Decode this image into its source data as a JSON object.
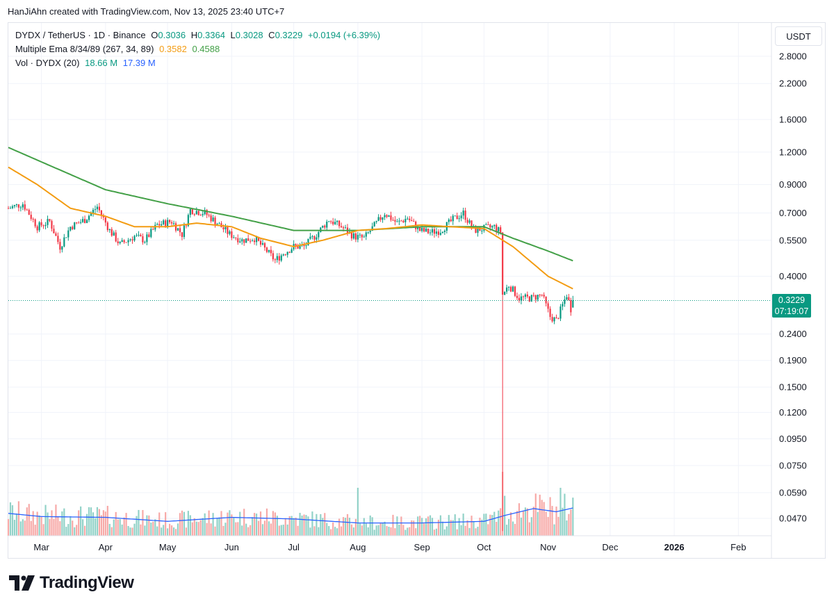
{
  "header": {
    "credit": "HanJiAhn created with TradingView.com, Nov 13, 2025 23:40 UTC+7"
  },
  "legend": {
    "symbol": "DYDX / TetherUS · 1D · Binance",
    "o_label": "O",
    "o_value": "0.3036",
    "h_label": "H",
    "h_value": "0.3364",
    "l_label": "L",
    "l_value": "0.3028",
    "c_label": "C",
    "c_value": "0.3229",
    "change": "+0.0194 (+6.39%)",
    "ema_label": "Multiple Ema 8/34/89 (267, 34, 89)",
    "ema34_value": "0.3582",
    "ema89_value": "0.4588",
    "vol_label": "Vol · DYDX (20)",
    "vol_value": "18.66 M",
    "vol_ma_value": "17.39 M"
  },
  "toolbar": {
    "currency": "USDT"
  },
  "last_price": {
    "price": "0.3229",
    "countdown": "07:19:07"
  },
  "brand": {
    "name": "TradingView",
    "logo_icon": "tradingview-logo-icon"
  },
  "colors": {
    "up": "#089981",
    "down": "#f23645",
    "vol_up": "#92d2c8",
    "vol_down": "#f7a9a7",
    "ema34": "#f39c12",
    "ema89": "#43a047",
    "vol_ma": "#2962ff"
  },
  "chart_data": {
    "type": "candlestick",
    "scale": "log",
    "grid": true,
    "y_ticks": [
      2.8,
      2.2,
      1.6,
      1.2,
      0.9,
      0.7,
      0.55,
      0.4,
      0.24,
      0.19,
      0.15,
      0.12,
      0.095,
      0.075,
      0.059,
      0.047
    ],
    "y_tick_labels": [
      "2.8000",
      "2.2000",
      "1.6000",
      "1.2000",
      "0.9000",
      "0.7000",
      "0.5500",
      "0.4000",
      "0.2400",
      "0.1900",
      "0.1500",
      "0.1200",
      "0.0950",
      "0.0750",
      "0.0590",
      "0.0470"
    ],
    "x_labels": [
      {
        "label": "Mar",
        "date": "2025-03-01"
      },
      {
        "label": "Apr",
        "date": "2025-04-01"
      },
      {
        "label": "May",
        "date": "2025-05-01"
      },
      {
        "label": "Jun",
        "date": "2025-06-01"
      },
      {
        "label": "Jul",
        "date": "2025-07-01"
      },
      {
        "label": "Aug",
        "date": "2025-08-01"
      },
      {
        "label": "Sep",
        "date": "2025-09-01"
      },
      {
        "label": "Oct",
        "date": "2025-10-01"
      },
      {
        "label": "Nov",
        "date": "2025-11-01"
      },
      {
        "label": "Dec",
        "date": "2025-12-01"
      },
      {
        "label": "2026",
        "date": "2026-01-01",
        "bold": true
      },
      {
        "label": "Feb",
        "date": "2026-02-01"
      }
    ],
    "x_range": [
      "2025-02-13",
      "2026-02-17"
    ],
    "price_anchors": [
      [
        "2025-02-13",
        0.73
      ],
      [
        "2025-02-20",
        0.76
      ],
      [
        "2025-02-27",
        0.62
      ],
      [
        "2025-03-05",
        0.65
      ],
      [
        "2025-03-10",
        0.52
      ],
      [
        "2025-03-15",
        0.62
      ],
      [
        "2025-03-22",
        0.66
      ],
      [
        "2025-03-28",
        0.74
      ],
      [
        "2025-04-03",
        0.6
      ],
      [
        "2025-04-08",
        0.53
      ],
      [
        "2025-04-15",
        0.57
      ],
      [
        "2025-04-20",
        0.55
      ],
      [
        "2025-04-26",
        0.63
      ],
      [
        "2025-05-03",
        0.65
      ],
      [
        "2025-05-08",
        0.58
      ],
      [
        "2025-05-12",
        0.72
      ],
      [
        "2025-05-19",
        0.7
      ],
      [
        "2025-05-25",
        0.64
      ],
      [
        "2025-05-31",
        0.58
      ],
      [
        "2025-06-06",
        0.55
      ],
      [
        "2025-06-12",
        0.56
      ],
      [
        "2025-06-18",
        0.5
      ],
      [
        "2025-06-22",
        0.46
      ],
      [
        "2025-06-26",
        0.49
      ],
      [
        "2025-07-01",
        0.52
      ],
      [
        "2025-07-06",
        0.52
      ],
      [
        "2025-07-12",
        0.58
      ],
      [
        "2025-07-18",
        0.66
      ],
      [
        "2025-07-24",
        0.62
      ],
      [
        "2025-07-30",
        0.57
      ],
      [
        "2025-08-04",
        0.56
      ],
      [
        "2025-08-10",
        0.64
      ],
      [
        "2025-08-14",
        0.7
      ],
      [
        "2025-08-20",
        0.64
      ],
      [
        "2025-08-25",
        0.67
      ],
      [
        "2025-08-31",
        0.6
      ],
      [
        "2025-09-05",
        0.59
      ],
      [
        "2025-09-10",
        0.6
      ],
      [
        "2025-09-16",
        0.66
      ],
      [
        "2025-09-21",
        0.7
      ],
      [
        "2025-09-26",
        0.6
      ],
      [
        "2025-10-01",
        0.61
      ],
      [
        "2025-10-06",
        0.62
      ],
      [
        "2025-10-09",
        0.59
      ],
      [
        "2025-10-10",
        0.34
      ],
      [
        "2025-10-13",
        0.37
      ],
      [
        "2025-10-18",
        0.33
      ],
      [
        "2025-10-24",
        0.33
      ],
      [
        "2025-10-29",
        0.34
      ],
      [
        "2025-11-02",
        0.28
      ],
      [
        "2025-11-05",
        0.27
      ],
      [
        "2025-11-08",
        0.31
      ],
      [
        "2025-11-10",
        0.34
      ],
      [
        "2025-11-12",
        0.3
      ],
      [
        "2025-11-13",
        0.3229
      ]
    ],
    "flash_wick": {
      "date": "2025-10-10",
      "high": 0.59,
      "low": 0.042
    },
    "ema34": [
      [
        "2025-02-13",
        1.05
      ],
      [
        "2025-02-27",
        0.9
      ],
      [
        "2025-03-15",
        0.73
      ],
      [
        "2025-04-01",
        0.68
      ],
      [
        "2025-04-15",
        0.62
      ],
      [
        "2025-05-01",
        0.62
      ],
      [
        "2025-05-15",
        0.64
      ],
      [
        "2025-06-01",
        0.62
      ],
      [
        "2025-06-15",
        0.56
      ],
      [
        "2025-07-01",
        0.52
      ],
      [
        "2025-07-15",
        0.55
      ],
      [
        "2025-08-01",
        0.6
      ],
      [
        "2025-08-15",
        0.61
      ],
      [
        "2025-09-01",
        0.63
      ],
      [
        "2025-09-15",
        0.62
      ],
      [
        "2025-10-01",
        0.61
      ],
      [
        "2025-10-15",
        0.52
      ],
      [
        "2025-11-01",
        0.4
      ],
      [
        "2025-11-13",
        0.3582
      ]
    ],
    "ema89": [
      [
        "2025-02-13",
        1.25
      ],
      [
        "2025-03-01",
        1.1
      ],
      [
        "2025-04-01",
        0.86
      ],
      [
        "2025-05-01",
        0.76
      ],
      [
        "2025-06-01",
        0.68
      ],
      [
        "2025-07-01",
        0.6
      ],
      [
        "2025-08-01",
        0.6
      ],
      [
        "2025-09-01",
        0.62
      ],
      [
        "2025-10-01",
        0.62
      ],
      [
        "2025-10-15",
        0.56
      ],
      [
        "2025-11-01",
        0.5
      ],
      [
        "2025-11-13",
        0.4588
      ]
    ],
    "volume_ma": [
      [
        "2025-02-13",
        14.0
      ],
      [
        "2025-03-01",
        12.0
      ],
      [
        "2025-04-01",
        11.5
      ],
      [
        "2025-05-01",
        9.0
      ],
      [
        "2025-06-01",
        11.5
      ],
      [
        "2025-07-01",
        10.5
      ],
      [
        "2025-08-01",
        8.0
      ],
      [
        "2025-09-01",
        8.0
      ],
      [
        "2025-10-01",
        9.0
      ],
      [
        "2025-10-12",
        13.0
      ],
      [
        "2025-10-25",
        17.0
      ],
      [
        "2025-11-05",
        15.0
      ],
      [
        "2025-11-13",
        17.39
      ]
    ],
    "volume_spikes": [
      [
        "2025-10-10",
        40.0
      ],
      [
        "2025-10-11",
        25.0
      ],
      [
        "2025-08-01",
        30.0
      ],
      [
        "2025-11-07",
        30.0
      ]
    ],
    "last_close": 0.3229
  }
}
